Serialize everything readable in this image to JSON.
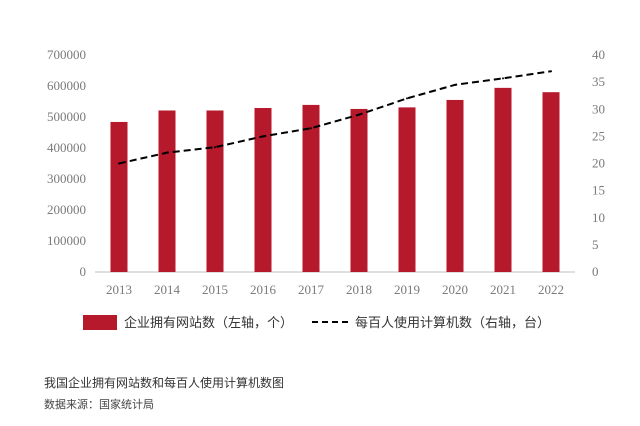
{
  "chart_data": {
    "type": "bar",
    "categories": [
      "2013",
      "2014",
      "2015",
      "2016",
      "2017",
      "2018",
      "2019",
      "2020",
      "2021",
      "2022"
    ],
    "series": [
      {
        "name": "企业拥有网站数（左轴，个）",
        "type": "bar",
        "axis": "left",
        "color": "#b5192b",
        "values": [
          484000,
          521000,
          521000,
          529000,
          539000,
          526000,
          531000,
          555000,
          594000,
          580000
        ]
      },
      {
        "name": "每百人使用计算机数（右轴，台）",
        "type": "line",
        "axis": "right",
        "color": "#000000",
        "style": "dashed",
        "values": [
          20,
          22,
          23,
          25,
          26.5,
          29,
          32,
          34.5,
          35.7,
          37
        ]
      }
    ],
    "y_left": {
      "ylim": [
        0,
        700000
      ],
      "ticks": [
        "0",
        "100000",
        "200000",
        "300000",
        "400000",
        "500000",
        "600000",
        "700000"
      ]
    },
    "y_right": {
      "ylim": [
        0,
        40
      ],
      "ticks": [
        "0",
        "5",
        "10",
        "15",
        "20",
        "25",
        "30",
        "35",
        "40"
      ]
    },
    "grid": false,
    "legend_position": "bottom"
  },
  "caption": "我国企业拥有网站数和每百人使用计算机数图",
  "source": "数据来源：国家统计局"
}
